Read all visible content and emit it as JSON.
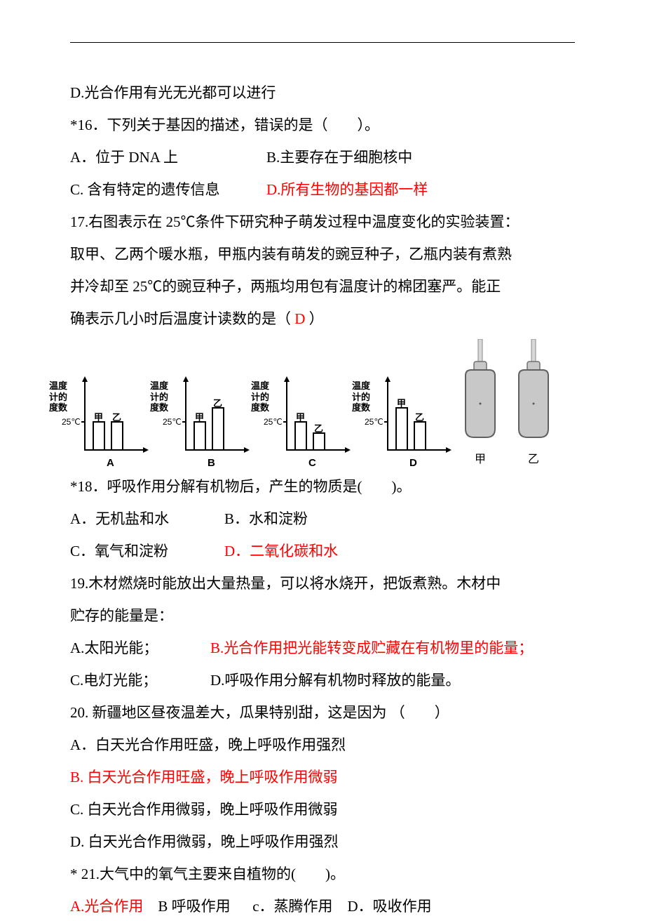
{
  "header_rule": true,
  "q15_D": "D.光合作用有光无光都可以进行",
  "q16": {
    "stem": "*16．下列关于基因的描述，错误的是（　　）。",
    "A": "A．位于 DNA 上",
    "B": "B.主要存在于细胞核中",
    "C": "C.  含有特定的遗传信息",
    "D": "D.所有生物的基因都一样",
    "D_is_answer": true
  },
  "q17": {
    "l1": "17.右图表示在 25℃条件下研究种子萌发过程中温度变化的实验装置：",
    "l2": "取甲、乙两个暖水瓶，甲瓶内装有萌发的豌豆种子，乙瓶内装有煮熟",
    "l3": "并冷却至 25℃的豌豆种子，两瓶均用包有温度计的棉团塞严。能正",
    "l4_a": "确表示几小时后温度计读数的是（ ",
    "l4_ans": "D",
    "l4_b": " ）",
    "y_axis_label_l1": "温度",
    "y_axis_label_l2": "计的",
    "y_axis_label_l3": "度数",
    "tick_label": "25℃",
    "bar1_label": "甲",
    "bar2_label": "乙",
    "charts": [
      {
        "letter": "A",
        "bar1_h": 40,
        "bar2_h": 40,
        "tick_top": 60
      },
      {
        "letter": "B",
        "bar1_h": 40,
        "bar2_h": 60,
        "tick_top": 60
      },
      {
        "letter": "C",
        "bar1_h": 40,
        "bar2_h": 24,
        "tick_top": 60
      },
      {
        "letter": "D",
        "bar1_h": 60,
        "bar2_h": 40,
        "tick_top": 60
      }
    ],
    "flask_labels": [
      "甲",
      "乙"
    ],
    "flask_fill": "#c8c8c8",
    "flask_stroke": "#606060"
  },
  "q18": {
    "stem": "*18．呼吸作用分解有机物后，产生的物质是(　　)。",
    "A": "A．无机盐和水",
    "B": "B．水和淀粉",
    "C": "C．氧气和淀粉",
    "D": "D．二氧化碳和水",
    "D_is_answer": true
  },
  "q19": {
    "l1": "19.木材燃烧时能放出大量热量，可以将水烧开，把饭煮熟。木材中",
    "l2": "贮存的能量是：",
    "A": "A.太阳光能；",
    "B": "B.光合作用把光能转变成贮藏在有机物里的能量；",
    "C": "C.电灯光能；",
    "D": "D.呼吸作用分解有机物时释放的能量。",
    "B_is_answer": true
  },
  "q20": {
    "stem": "20.  新疆地区昼夜温差大，瓜果特别甜，这是因为 （　　）",
    "A": "A．白天光合作用旺盛，晚上呼吸作用强烈",
    "B": "B.  白天光合作用旺盛，晚上呼吸作用微弱",
    "C": "C. 白天光合作用微弱，晚上呼吸作用微弱",
    "D": "D.  白天光合作用微弱，晚上呼吸作用强烈",
    "B_is_answer": true
  },
  "q21": {
    "stem": "* 21.大气中的氧气主要来自植物的(　　)。",
    "A": "A.光合作用",
    "B": "B 呼吸作用",
    "C": "c．蒸腾作用",
    "D": "D．吸收作用",
    "A_is_answer": true
  },
  "colors": {
    "text": "#000000",
    "answer": "#ff0000",
    "background": "#ffffff"
  },
  "fontsize_body": 21
}
